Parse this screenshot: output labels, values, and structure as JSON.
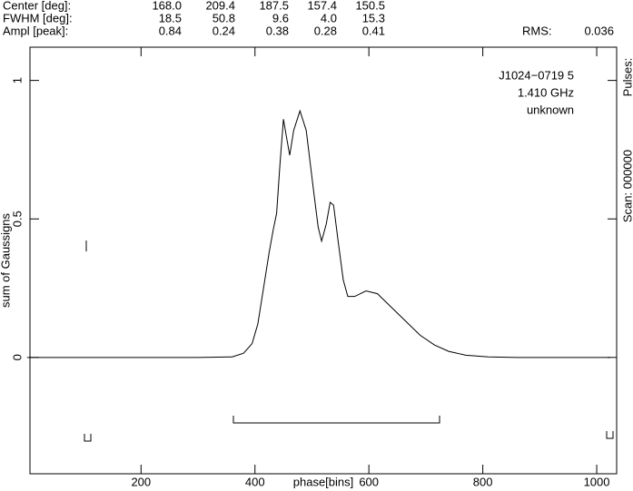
{
  "chart_data": {
    "type": "line",
    "header": [
      {
        "label": "Center [deg]:",
        "cells": [
          "168.0",
          "209.4",
          "187.5",
          "157.4",
          "150.5"
        ]
      },
      {
        "label": "FWHM  [deg]:",
        "cells": [
          "18.5",
          "50.8",
          "9.6",
          "4.0",
          "15.3"
        ]
      },
      {
        "label": "Ampl  [peak]:",
        "cells": [
          "0.84",
          "0.24",
          "0.38",
          "0.28",
          "0.41"
        ]
      }
    ],
    "rms_label": "RMS:",
    "rms": "0.036",
    "annotations": [
      "J1024−0719 5",
      "1.410 GHz",
      "unknown"
    ],
    "right_labels": [
      "Pulses:",
      "Scan: 000000"
    ],
    "xlabel": "phase[bins]",
    "ylabel": "sum of Gaussigns",
    "xlim": [
      5,
      1035
    ],
    "ylim": [
      -0.42,
      1.12
    ],
    "xticks": [
      200,
      400,
      600,
      800,
      1000
    ],
    "yticks": [
      0,
      0.5,
      1
    ],
    "grid": false,
    "series": [
      {
        "color": "#000000",
        "x": [
          0,
          300,
          360,
          380,
          395,
          405,
          415,
          425,
          432,
          438,
          444,
          450,
          455,
          461,
          468,
          479,
          490,
          503,
          511,
          517,
          525,
          532,
          538,
          546,
          555,
          563,
          575,
          595,
          615,
          640,
          665,
          690,
          715,
          740,
          770,
          810,
          860,
          1024
        ],
        "values": [
          0,
          0,
          0.002,
          0.015,
          0.05,
          0.12,
          0.25,
          0.38,
          0.46,
          0.52,
          0.7,
          0.86,
          0.8,
          0.73,
          0.82,
          0.89,
          0.82,
          0.6,
          0.47,
          0.42,
          0.48,
          0.56,
          0.55,
          0.42,
          0.28,
          0.22,
          0.22,
          0.24,
          0.23,
          0.18,
          0.13,
          0.08,
          0.045,
          0.022,
          0.008,
          0.002,
          0,
          0
        ]
      }
    ]
  }
}
